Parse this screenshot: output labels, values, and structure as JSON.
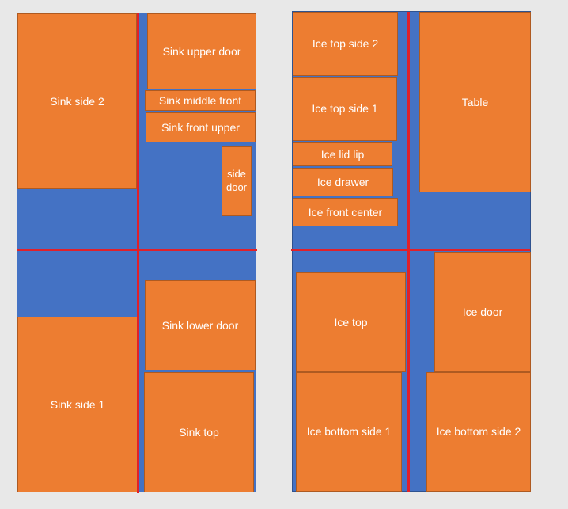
{
  "left_sheet": {
    "pieces": [
      {
        "label": "Sink side 2"
      },
      {
        "label": "Sink upper door"
      },
      {
        "label": "Sink middle front"
      },
      {
        "label": "Sink front upper"
      },
      {
        "label": "side door"
      },
      {
        "label": "Sink lower door"
      },
      {
        "label": "Sink side 1"
      },
      {
        "label": "Sink top"
      }
    ]
  },
  "right_sheet": {
    "pieces": [
      {
        "label": "Ice top side 2"
      },
      {
        "label": "Ice top side 1"
      },
      {
        "label": "Ice lid lip"
      },
      {
        "label": "Ice drawer"
      },
      {
        "label": "Ice front center"
      },
      {
        "label": "Table"
      },
      {
        "label": "Ice top"
      },
      {
        "label": "Ice door"
      },
      {
        "label": "Ice bottom side 1"
      },
      {
        "label": "Ice bottom side 2"
      }
    ]
  },
  "colors": {
    "sheet": "#4472c4",
    "piece": "#ed7d31",
    "cut_line": "#e0202a",
    "background": "#e8e8e8"
  }
}
